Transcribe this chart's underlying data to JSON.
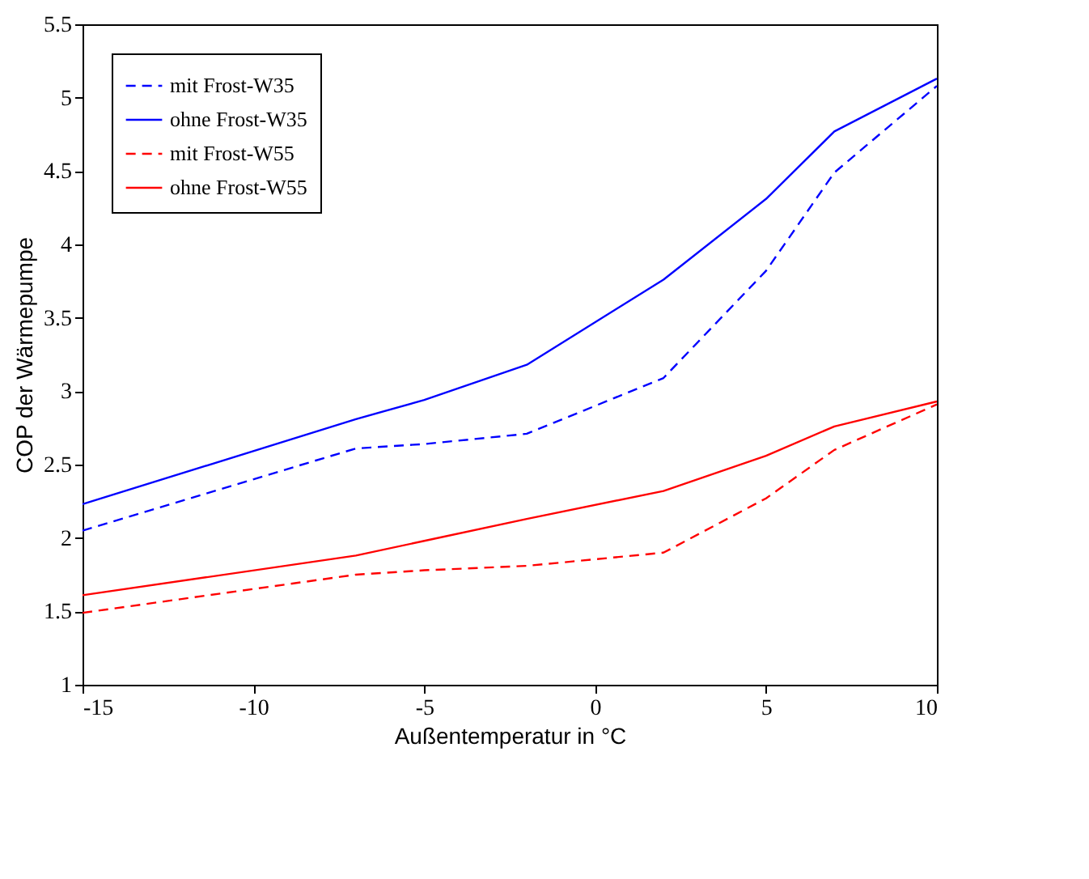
{
  "chart_data": {
    "type": "line",
    "xlabel": "Außentemperatur in °C",
    "ylabel": "COP der Wärmepumpe",
    "x": [
      -15,
      -7,
      -5,
      -2,
      2,
      5,
      7,
      10
    ],
    "series": [
      {
        "name": "mit Frost-W35",
        "color": "#0000ff",
        "line_style": "dashed",
        "values": [
          2.05,
          2.61,
          2.64,
          2.71,
          3.09,
          3.82,
          4.49,
          5.08
        ]
      },
      {
        "name": "ohne Frost-W35",
        "color": "#0000ff",
        "line_style": "solid",
        "values": [
          2.23,
          2.81,
          2.94,
          3.18,
          3.76,
          4.31,
          4.77,
          5.13
        ]
      },
      {
        "name": "mit Frost-W55",
        "color": "#ff0000",
        "line_style": "dashed",
        "values": [
          1.49,
          1.75,
          1.78,
          1.81,
          1.9,
          2.27,
          2.6,
          2.91
        ]
      },
      {
        "name": "ohne Frost-W55",
        "color": "#ff0000",
        "line_style": "solid",
        "values": [
          1.61,
          1.88,
          1.98,
          2.13,
          2.32,
          2.56,
          2.76,
          2.93
        ]
      }
    ],
    "xlim": [
      -15,
      10
    ],
    "xticks": [
      -15,
      -10,
      -5,
      0,
      5,
      10
    ],
    "ylim": [
      1,
      5.5
    ],
    "yticks": [
      1,
      1.5,
      2,
      2.5,
      3,
      3.5,
      4,
      4.5,
      5,
      5.5
    ],
    "legend": "top left",
    "grid": false,
    "marker": "none"
  }
}
